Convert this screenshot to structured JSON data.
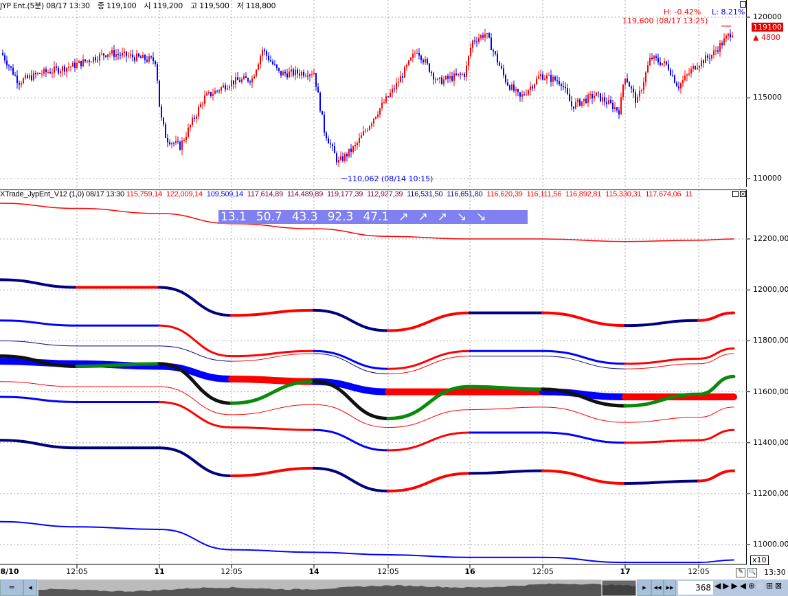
{
  "header": {
    "symbol": "JYP Ent.(5분) 08/17 13:30",
    "close": "종 119,100",
    "open": "시 119,200",
    "high": "고 119,500",
    "low": "저 118,800"
  },
  "price_panel": {
    "hl_high": "H: -0.42%",
    "hl_low": "L: 8.21%",
    "high_note": "119,600 (08/17 13:25)",
    "low_note": "110,062 (08/14 10:15)",
    "current_price": "119100",
    "change": "▲ 4800",
    "y_ticks": [
      "120000",
      "115000",
      "110000"
    ]
  },
  "indicator_panel": {
    "name": "XTrade_JypEnt_V12",
    "params": "(1,0) 08/17 13:30",
    "values": [
      "115,759,14",
      "122,009,14",
      "109,509,14",
      "117,614,89",
      "114,489,89",
      "119,177,39",
      "112,927,39",
      "116,531,50",
      "116,651,80",
      "116,620,39",
      "116,111,56",
      "116,892,81",
      "115,330,31",
      "117,674,06",
      "11"
    ],
    "value_colors": [
      "#ff0000",
      "#ff0000",
      "#0000ff",
      "#800040",
      "#800040",
      "#800040",
      "#800040",
      "#000080",
      "#000080",
      "#ff0000",
      "#ff0000",
      "#ff0000",
      "#ff0000",
      "#ff0000",
      "#ff0000"
    ],
    "signal_values": [
      "13.1",
      "50.7",
      "43.3",
      "92.3",
      "47.1",
      "↗",
      "↗",
      "↗",
      "↘",
      "↘"
    ],
    "y_ticks": [
      "12200,00",
      "12000,00",
      "11800,00",
      "11600,00",
      "11400,00",
      "11200,00",
      "11000,00"
    ],
    "scale_label": "x10"
  },
  "x_axis": {
    "labels": [
      {
        "t": "8/10",
        "b": true
      },
      {
        "t": "12:05",
        "b": false
      },
      {
        "t": "11",
        "b": true
      },
      {
        "t": "12:05",
        "b": false
      },
      {
        "t": "14",
        "b": true
      },
      {
        "t": "12:05",
        "b": false
      },
      {
        "t": "16",
        "b": true
      },
      {
        "t": "12:05",
        "b": false
      },
      {
        "t": "17",
        "b": true
      },
      {
        "t": "12:05",
        "b": false
      }
    ],
    "time": "13:30"
  },
  "footer": {
    "bar_count": "368"
  },
  "colors": {
    "up": "#ff0000",
    "down": "#0000ff",
    "signal_bg": "#8080f0"
  },
  "chart_data": {
    "type": "line",
    "price_keypoints": [
      [
        0,
        117800
      ],
      [
        25,
        116000
      ],
      [
        55,
        116500
      ],
      [
        105,
        117000
      ],
      [
        155,
        117800
      ],
      [
        225,
        117300
      ],
      [
        231,
        114000
      ],
      [
        240,
        112500
      ],
      [
        260,
        112000
      ],
      [
        295,
        115000
      ],
      [
        335,
        116000
      ],
      [
        365,
        116200
      ],
      [
        380,
        118000
      ],
      [
        405,
        116500
      ],
      [
        455,
        116600
      ],
      [
        470,
        113000
      ],
      [
        490,
        111000
      ],
      [
        515,
        112000
      ],
      [
        545,
        114000
      ],
      [
        575,
        115800
      ],
      [
        605,
        118000
      ],
      [
        635,
        116000
      ],
      [
        675,
        116500
      ],
      [
        685,
        118500
      ],
      [
        705,
        119000
      ],
      [
        735,
        116000
      ],
      [
        755,
        115000
      ],
      [
        785,
        116400
      ],
      [
        815,
        116000
      ],
      [
        830,
        114500
      ],
      [
        865,
        115200
      ],
      [
        900,
        114200
      ],
      [
        907,
        116500
      ],
      [
        925,
        114700
      ],
      [
        945,
        117500
      ],
      [
        970,
        117000
      ],
      [
        985,
        115700
      ],
      [
        1010,
        117000
      ],
      [
        1035,
        117700
      ],
      [
        1063,
        119100
      ]
    ],
    "indicator_anchors": [
      "8/10",
      "12:05",
      "11",
      "12:05",
      "14",
      "12:05",
      "16",
      "12:05",
      "17",
      "12:05",
      "13:30"
    ],
    "indicator_series": [
      {
        "values": [
          12340,
          12320,
          12300,
          12260,
          12240,
          12210,
          12200,
          12200,
          12190,
          12195,
          12200
        ],
        "colors": [
          "r"
        ],
        "w": 1.5
      },
      {
        "values": [
          12040,
          12010,
          12010,
          11900,
          11920,
          11840,
          11910,
          11910,
          11860,
          11880,
          11910
        ],
        "colors": [
          "n",
          "r",
          "n",
          "r",
          "n",
          "r",
          "n",
          "r",
          "n",
          "r"
        ],
        "w": 4
      },
      {
        "values": [
          11880,
          11860,
          11860,
          11740,
          11760,
          11690,
          11760,
          11760,
          11710,
          11730,
          11770
        ],
        "colors": [
          "b",
          "b",
          "r",
          "r",
          "b",
          "r",
          "b",
          "b",
          "r",
          "r"
        ],
        "w": 3
      },
      {
        "values": [
          11800,
          11780,
          11780,
          11720,
          11750,
          11670,
          11740,
          11740,
          11690,
          11710,
          11750
        ],
        "colors": [
          "n",
          "n",
          "n",
          "r",
          "n",
          "r",
          "n",
          "n",
          "r",
          "r"
        ],
        "w": 1
      },
      {
        "values": [
          11720,
          11710,
          11700,
          11650,
          11640,
          11600,
          11600,
          11600,
          11580,
          11580,
          11580
        ],
        "colors": [
          "b",
          "b",
          "b",
          "r",
          "b",
          "r",
          "r",
          "b",
          "r",
          "r"
        ],
        "w": 10
      },
      {
        "values": [
          11740,
          11700,
          11710,
          11555,
          11640,
          11495,
          11620,
          11610,
          11545,
          11590,
          11660
        ],
        "colors": [
          "k",
          "g",
          "k",
          "g",
          "k",
          "g",
          "g",
          "k",
          "g",
          "g"
        ],
        "w": 5
      },
      {
        "values": [
          11640,
          11620,
          11620,
          11510,
          11550,
          11460,
          11530,
          11540,
          11480,
          11500,
          11540
        ],
        "colors": [
          "r"
        ],
        "w": 1
      },
      {
        "values": [
          11580,
          11560,
          11560,
          11460,
          11450,
          11370,
          11440,
          11440,
          11400,
          11410,
          11450
        ],
        "colors": [
          "b",
          "b",
          "r",
          "r",
          "b",
          "r",
          "b",
          "b",
          "r",
          "r"
        ],
        "w": 3
      },
      {
        "values": [
          11410,
          11380,
          11380,
          11270,
          11300,
          11210,
          11280,
          11290,
          11240,
          11250,
          11290
        ],
        "colors": [
          "n",
          "n",
          "n",
          "r",
          "n",
          "r",
          "n",
          "r",
          "n",
          "r"
        ],
        "w": 4
      },
      {
        "values": [
          11090,
          11070,
          11060,
          10980,
          10970,
          10960,
          10950,
          10950,
          10930,
          10930,
          10940
        ],
        "colors": [
          "b"
        ],
        "w": 2
      }
    ]
  }
}
